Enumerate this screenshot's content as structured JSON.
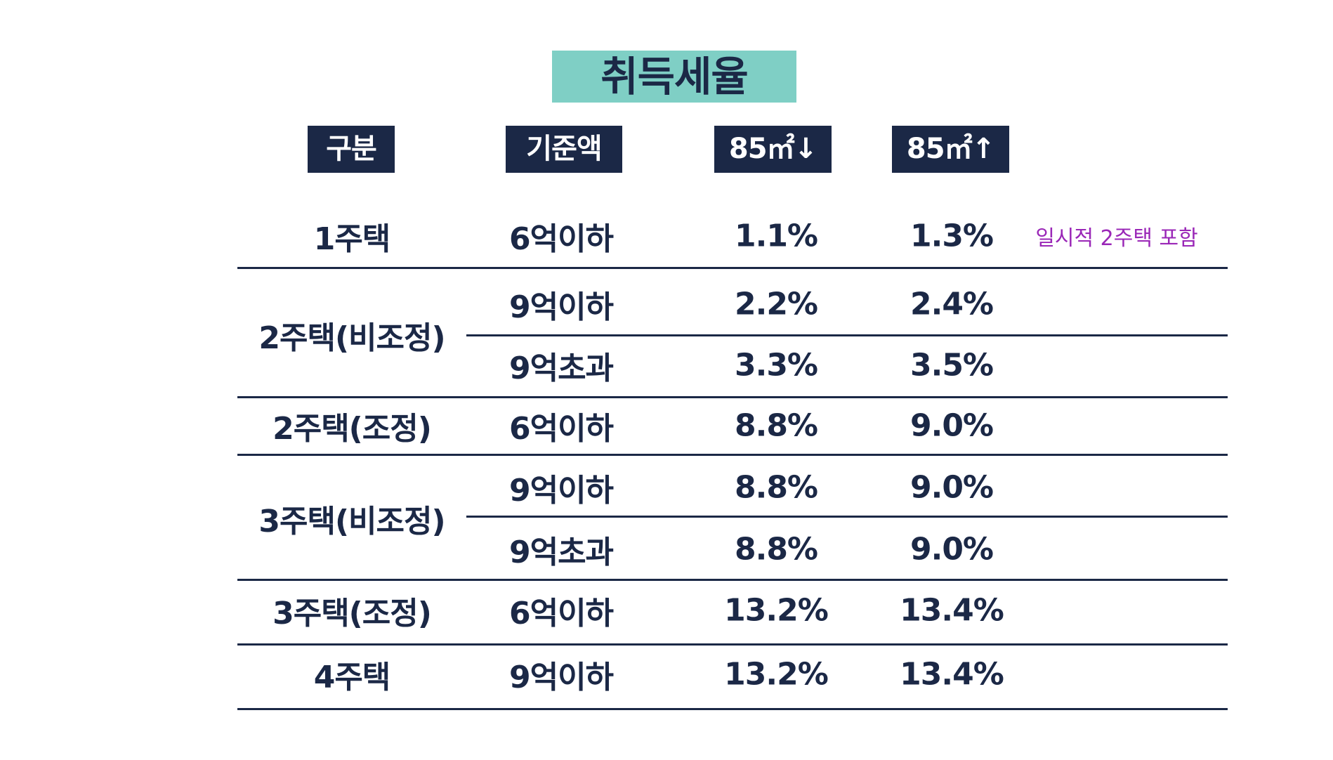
{
  "title": "취득세율",
  "headers": [
    "구분",
    "기준액",
    "85㎡↓",
    "85㎡↑"
  ],
  "note": "일시적 2주택 포함",
  "colors": {
    "title_bg": "#7fcfc5",
    "header_bg": "#1b2846",
    "text": "#1b2846",
    "note": "#9a27b7"
  },
  "groups": [
    {
      "category": "1주택",
      "rows": [
        {
          "base": "6억이하",
          "rate_under85": "1.1%",
          "rate_over85": "1.3%"
        }
      ]
    },
    {
      "category": "2주택(비조정)",
      "rows": [
        {
          "base": "9억이하",
          "rate_under85": "2.2%",
          "rate_over85": "2.4%"
        },
        {
          "base": "9억초과",
          "rate_under85": "3.3%",
          "rate_over85": "3.5%"
        }
      ]
    },
    {
      "category": "2주택(조정)",
      "rows": [
        {
          "base": "6억이하",
          "rate_under85": "8.8%",
          "rate_over85": "9.0%"
        }
      ]
    },
    {
      "category": "3주택(비조정)",
      "rows": [
        {
          "base": "9억이하",
          "rate_under85": "8.8%",
          "rate_over85": "9.0%"
        },
        {
          "base": "9억초과",
          "rate_under85": "8.8%",
          "rate_over85": "9.0%"
        }
      ]
    },
    {
      "category": "3주택(조정)",
      "rows": [
        {
          "base": "6억이하",
          "rate_under85": "13.2%",
          "rate_over85": "13.4%"
        }
      ]
    },
    {
      "category": "4주택",
      "rows": [
        {
          "base": "9억이하",
          "rate_under85": "13.2%",
          "rate_over85": "13.4%"
        }
      ]
    }
  ]
}
